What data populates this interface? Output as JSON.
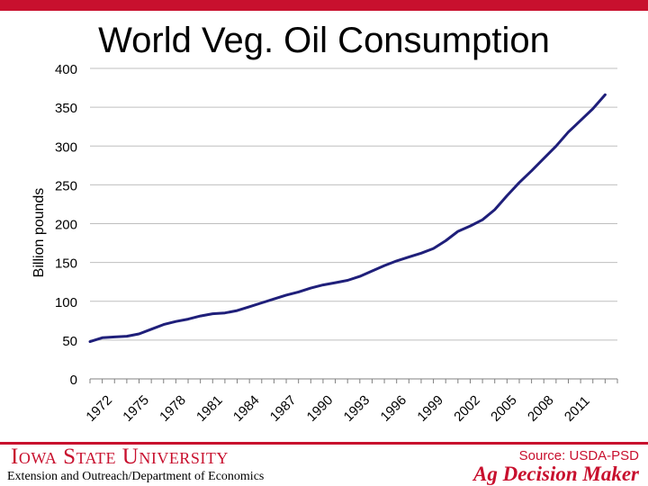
{
  "slide": {
    "title": "World Veg. Oil Consumption"
  },
  "footer": {
    "university": "Iowa State University",
    "department": "Extension and Outreach/Department of Economics",
    "source": "Source: USDA-PSD",
    "brand": "Ag Decision Maker"
  },
  "colors": {
    "accent": "#c8102e",
    "line": "#1f1f7a",
    "grid": "#bfbfbf"
  },
  "chart_data": {
    "type": "line",
    "title": "World Veg. Oil Consumption",
    "xlabel": "",
    "ylabel": "Billion pounds",
    "ylim": [
      0,
      400
    ],
    "yticks": [
      0,
      50,
      100,
      150,
      200,
      250,
      300,
      350,
      400
    ],
    "xlim": [
      1971,
      2014
    ],
    "xticks": [
      1972,
      1975,
      1978,
      1981,
      1984,
      1987,
      1990,
      1993,
      1996,
      1999,
      2002,
      2005,
      2008,
      2011
    ],
    "grid": "horizontal",
    "series": [
      {
        "name": "",
        "x": [
          1971,
          1972,
          1973,
          1974,
          1975,
          1976,
          1977,
          1978,
          1979,
          1980,
          1981,
          1982,
          1983,
          1984,
          1985,
          1986,
          1987,
          1988,
          1989,
          1990,
          1991,
          1992,
          1993,
          1994,
          1995,
          1996,
          1997,
          1998,
          1999,
          2000,
          2001,
          2002,
          2003,
          2004,
          2005,
          2006,
          2007,
          2008,
          2009,
          2010,
          2011,
          2012,
          2013
        ],
        "values": [
          48,
          53,
          54,
          55,
          58,
          64,
          70,
          74,
          77,
          81,
          84,
          85,
          88,
          93,
          98,
          103,
          108,
          112,
          117,
          121,
          124,
          127,
          132,
          139,
          146,
          152,
          157,
          162,
          168,
          178,
          190,
          197,
          205,
          218,
          236,
          253,
          268,
          284,
          300,
          318,
          333,
          348,
          366
        ]
      }
    ]
  }
}
